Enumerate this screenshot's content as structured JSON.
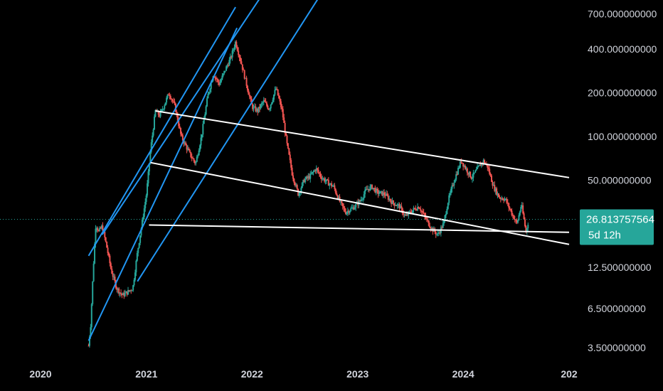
{
  "colors": {
    "background": "#000000",
    "up_candle": "#26a69a",
    "down_candle": "#ef5350",
    "channel_line": "#2196f3",
    "trend_line": "#ffffff",
    "price_line": "#26a69a",
    "price_box": "#26a69a",
    "text": "#d1d4dc"
  },
  "chart_data": {
    "type": "candlestick",
    "y_scale": "log",
    "ylim": [
      3.3,
      780
    ],
    "xlim": [
      "2020-01-01",
      "2025-01-01"
    ],
    "y_ticks": [
      {
        "value": 700,
        "label": "700.000000000"
      },
      {
        "value": 400,
        "label": "400.000000000"
      },
      {
        "value": 200,
        "label": "200.000000000"
      },
      {
        "value": 100,
        "label": "100.000000000"
      },
      {
        "value": 50,
        "label": "50.000000000"
      },
      {
        "value": 12.5,
        "label": "12.500000000"
      },
      {
        "value": 6.5,
        "label": "6.500000000"
      },
      {
        "value": 3.5,
        "label": "3.500000000"
      }
    ],
    "x_ticks": [
      {
        "value": "2020-01-01",
        "label": "2020"
      },
      {
        "value": "2021-01-01",
        "label": "2021"
      },
      {
        "value": "2022-01-01",
        "label": "2022"
      },
      {
        "value": "2023-01-01",
        "label": "2023"
      },
      {
        "value": "2024-01-01",
        "label": "2024"
      },
      {
        "value": "2025-01-01",
        "label": "202"
      }
    ],
    "price_trend": [
      [
        "2020-06-15",
        3.6
      ],
      [
        "2020-06-22",
        5
      ],
      [
        "2020-07-01",
        12
      ],
      [
        "2020-07-10",
        25
      ],
      [
        "2020-07-20",
        22
      ],
      [
        "2020-08-01",
        24
      ],
      [
        "2020-08-15",
        18
      ],
      [
        "2020-09-01",
        12
      ],
      [
        "2020-09-20",
        9
      ],
      [
        "2020-10-10",
        8
      ],
      [
        "2020-10-30",
        8.5
      ],
      [
        "2020-11-15",
        9
      ],
      [
        "2020-12-01",
        16
      ],
      [
        "2020-12-15",
        24
      ],
      [
        "2021-01-01",
        40
      ],
      [
        "2021-01-15",
        80
      ],
      [
        "2021-02-01",
        150
      ],
      [
        "2021-02-15",
        140
      ],
      [
        "2021-03-01",
        160
      ],
      [
        "2021-03-20",
        200
      ],
      [
        "2021-04-10",
        160
      ],
      [
        "2021-05-01",
        100
      ],
      [
        "2021-06-01",
        75
      ],
      [
        "2021-06-20",
        65
      ],
      [
        "2021-07-10",
        100
      ],
      [
        "2021-08-01",
        190
      ],
      [
        "2021-08-20",
        270
      ],
      [
        "2021-09-10",
        230
      ],
      [
        "2021-10-01",
        290
      ],
      [
        "2021-10-20",
        350
      ],
      [
        "2021-11-05",
        450
      ],
      [
        "2021-11-25",
        320
      ],
      [
        "2021-12-15",
        220
      ],
      [
        "2022-01-01",
        160
      ],
      [
        "2022-01-20",
        150
      ],
      [
        "2022-02-10",
        175
      ],
      [
        "2022-03-01",
        155
      ],
      [
        "2022-03-25",
        215
      ],
      [
        "2022-04-15",
        150
      ],
      [
        "2022-05-01",
        90
      ],
      [
        "2022-05-20",
        55
      ],
      [
        "2022-06-10",
        40
      ],
      [
        "2022-06-30",
        50
      ],
      [
        "2022-07-20",
        53
      ],
      [
        "2022-08-10",
        60
      ],
      [
        "2022-08-30",
        52
      ],
      [
        "2022-09-20",
        48
      ],
      [
        "2022-10-10",
        45
      ],
      [
        "2022-10-30",
        36
      ],
      [
        "2022-11-20",
        30
      ],
      [
        "2022-12-15",
        32
      ],
      [
        "2023-01-10",
        36
      ],
      [
        "2023-02-01",
        43
      ],
      [
        "2023-02-20",
        45
      ],
      [
        "2023-03-10",
        41
      ],
      [
        "2023-04-05",
        40
      ],
      [
        "2023-05-01",
        35
      ],
      [
        "2023-05-25",
        33
      ],
      [
        "2023-06-15",
        28
      ],
      [
        "2023-07-10",
        31
      ],
      [
        "2023-08-01",
        33
      ],
      [
        "2023-08-25",
        27
      ],
      [
        "2023-09-15",
        23
      ],
      [
        "2023-10-05",
        21
      ],
      [
        "2023-10-25",
        25
      ],
      [
        "2023-11-10",
        36
      ],
      [
        "2023-12-01",
        50
      ],
      [
        "2023-12-25",
        68
      ],
      [
        "2024-01-10",
        60
      ],
      [
        "2024-01-30",
        52
      ],
      [
        "2024-02-20",
        60
      ],
      [
        "2024-03-10",
        68
      ],
      [
        "2024-03-25",
        62
      ],
      [
        "2024-04-15",
        45
      ],
      [
        "2024-05-05",
        38
      ],
      [
        "2024-05-25",
        37
      ],
      [
        "2024-06-15",
        30
      ],
      [
        "2024-07-05",
        25
      ],
      [
        "2024-07-20",
        34
      ],
      [
        "2024-08-05",
        22
      ],
      [
        "2024-08-15",
        27
      ]
    ],
    "channel_lines": [
      {
        "points": [
          [
            "2020-06-15",
            3.9
          ],
          [
            "2021-11-10",
            560
          ]
        ]
      },
      {
        "points": [
          [
            "2020-06-15",
            15
          ],
          [
            "2021-11-05",
            780
          ]
        ]
      },
      {
        "points": [
          [
            "2020-08-01",
            21
          ],
          [
            "2022-02-20",
            1050
          ]
        ]
      },
      {
        "points": [
          [
            "2020-12-01",
            10
          ],
          [
            "2022-11-15",
            1700
          ]
        ]
      }
    ],
    "trend_lines": [
      {
        "points": [
          [
            "2021-02-01",
            150
          ],
          [
            "2025-01-01",
            52
          ]
        ]
      },
      {
        "points": [
          [
            "2021-01-15",
            66
          ],
          [
            "2025-01-01",
            18
          ]
        ]
      },
      {
        "points": [
          [
            "2021-01-10",
            24.5
          ],
          [
            "2025-01-01",
            21.8
          ]
        ]
      }
    ],
    "current_price": {
      "value": 26.813757564,
      "label": "26.813757564",
      "countdown": "5d 12h"
    }
  }
}
